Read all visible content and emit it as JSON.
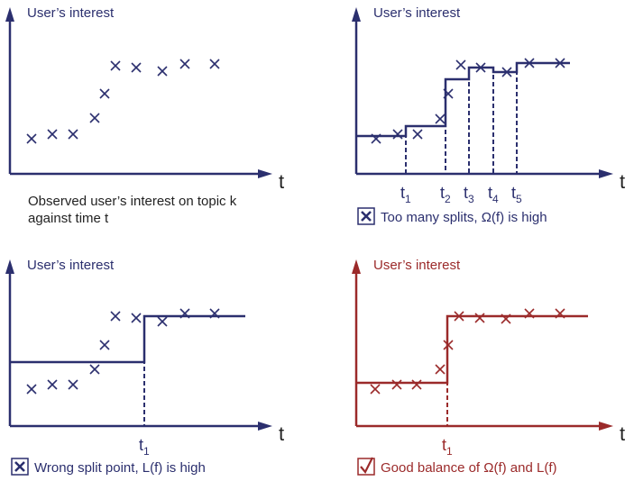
{
  "colors": {
    "navy": "#2b2f6e",
    "red": "#9b2a2a"
  },
  "panels": [
    {
      "id": "observed",
      "ylabel": "User’s interest",
      "xlabel": "t",
      "caption_lines": [
        "Observed user’s interest on topic k",
        "against time t"
      ],
      "color": "navy"
    },
    {
      "id": "too-many-splits",
      "ylabel": "User’s interest",
      "xlabel": "t",
      "ticks": [
        "t1",
        "t2",
        "t3",
        "t4",
        "t5"
      ],
      "caption": "Too many splits, Ω(f)  is high",
      "caption_icon": "x-box-icon",
      "color": "navy"
    },
    {
      "id": "wrong-split",
      "ylabel": "User’s interest",
      "xlabel": "t",
      "ticks": [
        "t1"
      ],
      "caption": "Wrong split point, L(f) is high",
      "caption_icon": "x-box-icon",
      "color": "navy"
    },
    {
      "id": "good-balance",
      "ylabel": "User’s interest",
      "xlabel": "t",
      "ticks": [
        "t1"
      ],
      "caption": "Good balance of Ω(f) and L(f)",
      "caption_icon": "checkmark-box-icon",
      "color": "red"
    }
  ]
}
